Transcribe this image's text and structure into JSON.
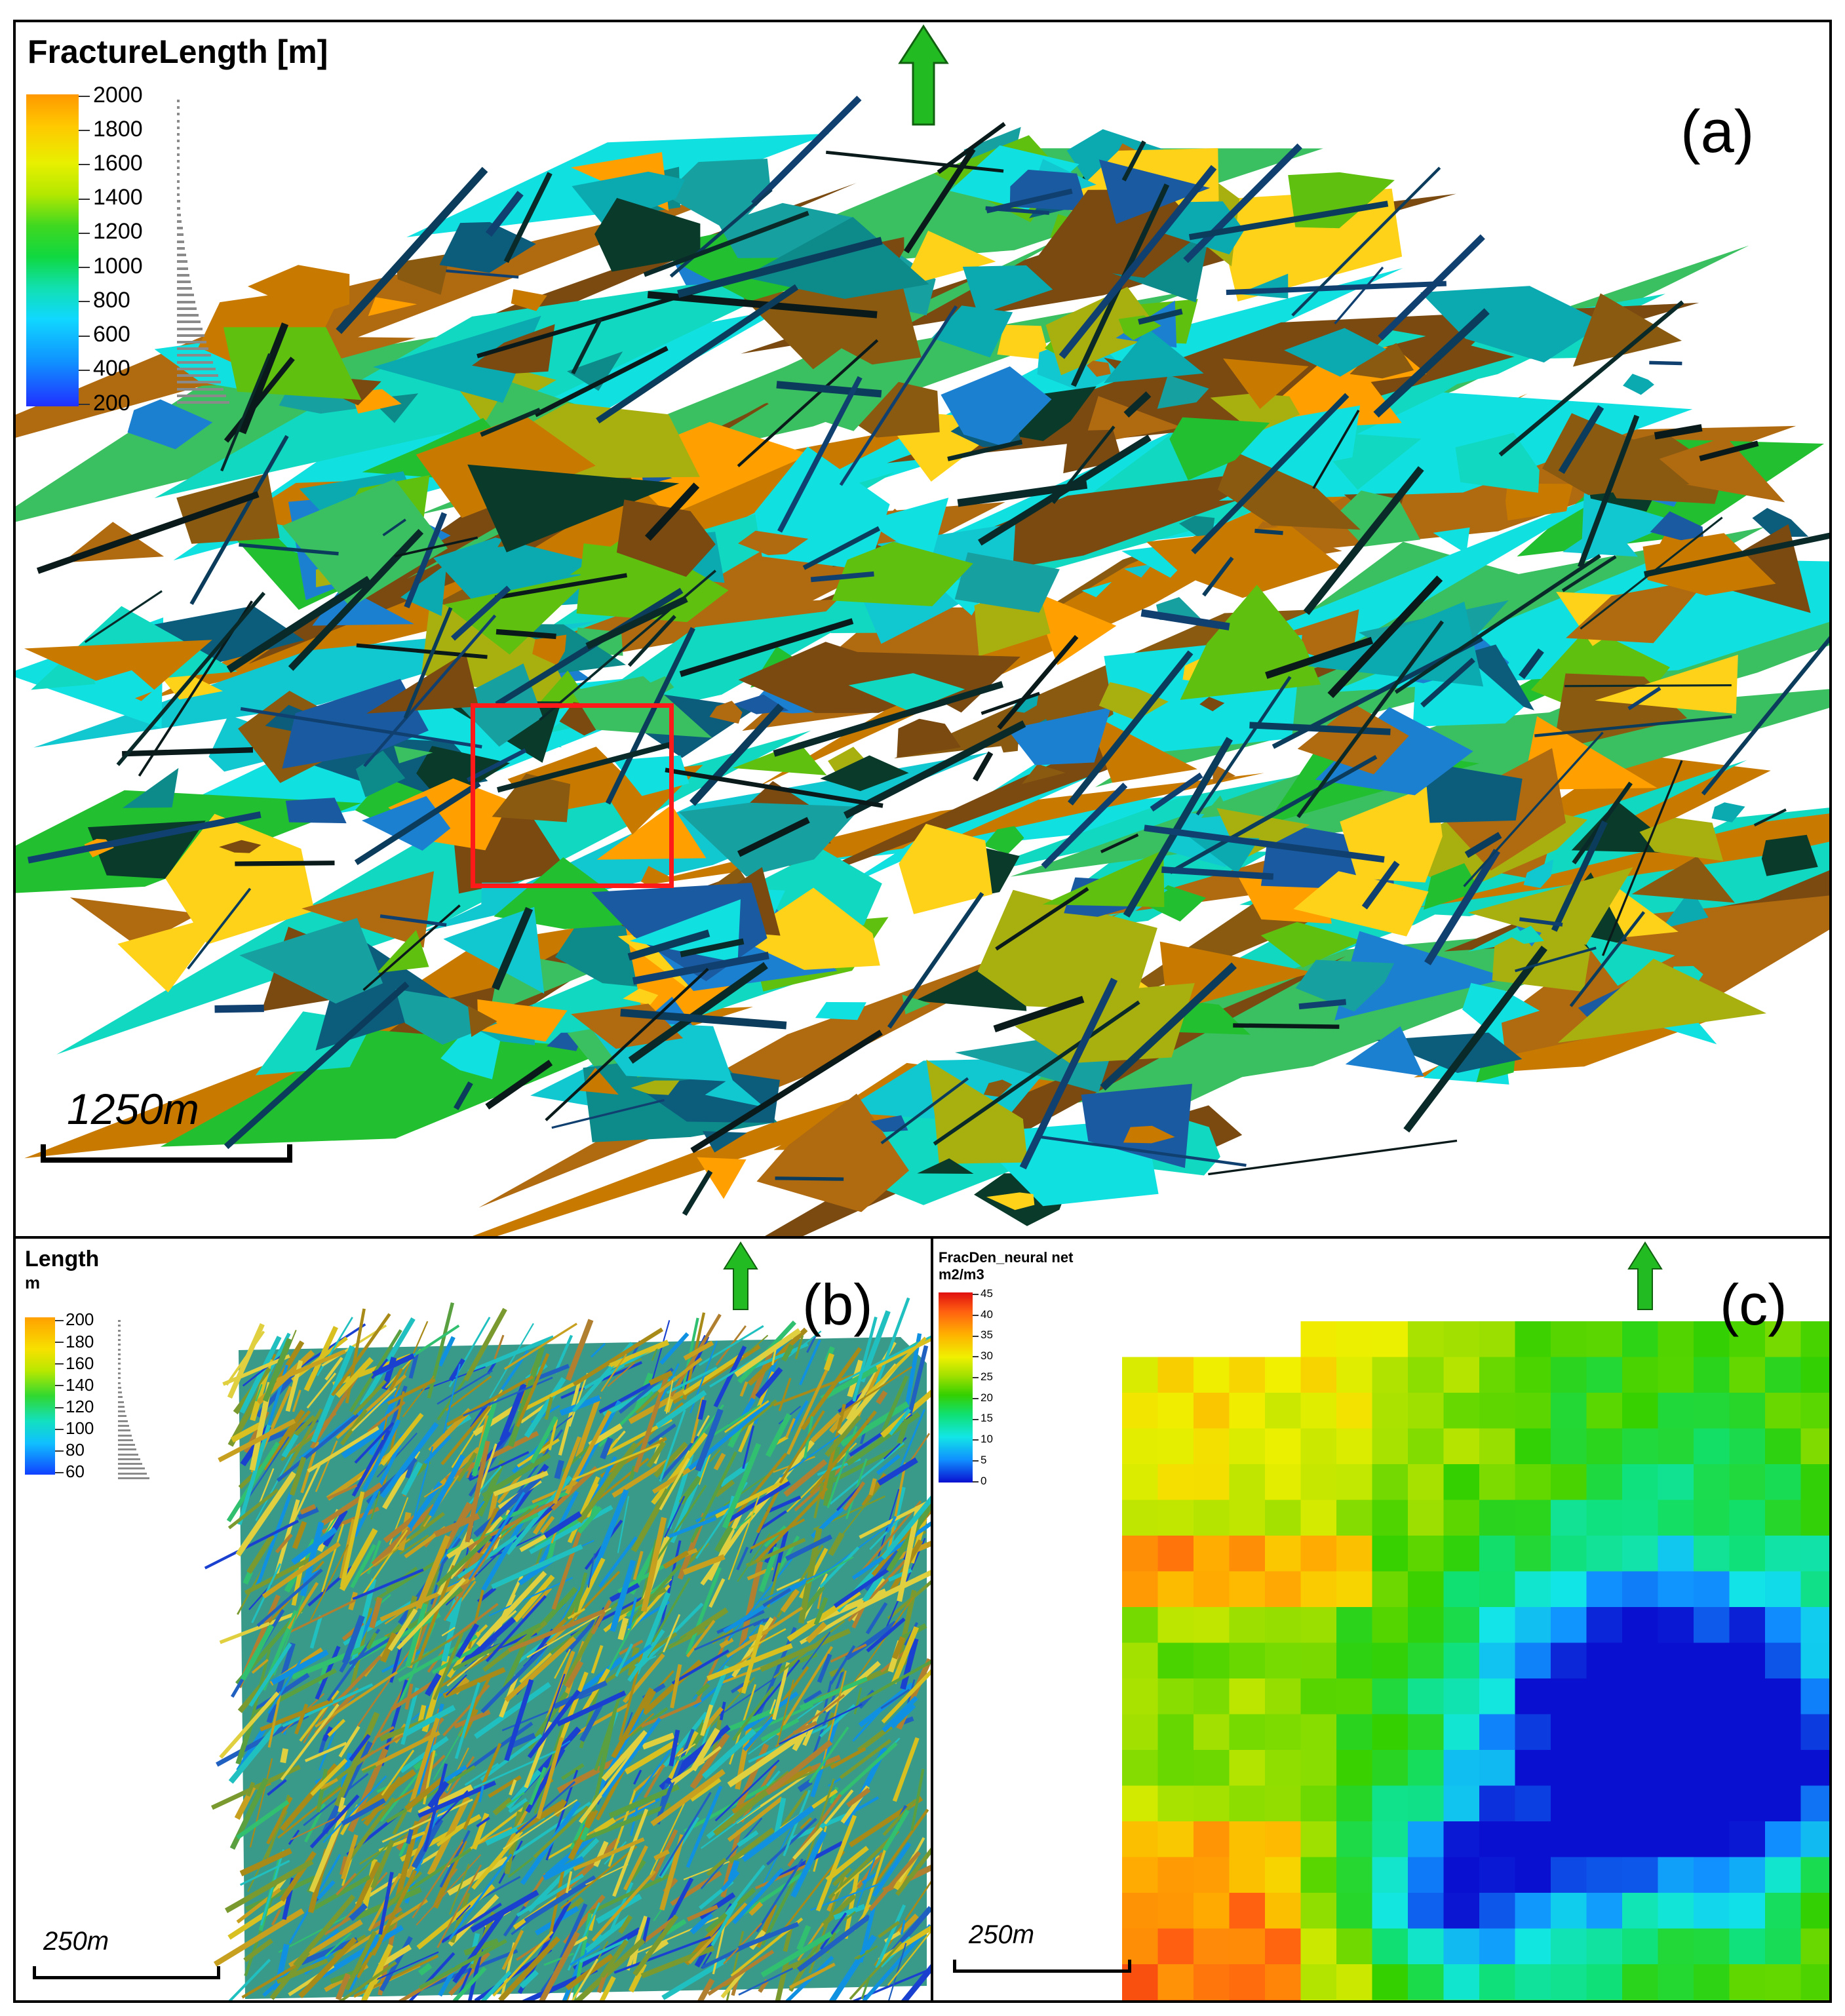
{
  "panel_a": {
    "legend_title": "FractureLength [m]",
    "ticks": [
      "2000",
      "1800",
      "1600",
      "1400",
      "1200",
      "1000",
      "800",
      "600",
      "400",
      "200"
    ],
    "scale_label": "1250m",
    "label": "(a)"
  },
  "panel_b": {
    "legend_title": "Length",
    "legend_unit": "m",
    "ticks": [
      "200",
      "180",
      "160",
      "140",
      "120",
      "100",
      "80",
      "60"
    ],
    "scale_label": "250m",
    "label": "(b)"
  },
  "panel_c": {
    "legend_title": "FracDen_neural net",
    "legend_unit": "m2/m3",
    "ticks": [
      "45",
      "40",
      "35",
      "30",
      "25",
      "20",
      "15",
      "10",
      "5",
      "0"
    ],
    "scale_label": "250m",
    "label": "(c)"
  },
  "colors": {
    "frame": "#000000",
    "highlight_box": "#ff1a1a",
    "north_arrow": "#22bb22",
    "colormap_a": [
      "#1f3fff",
      "#10c8ff",
      "#11e0b0",
      "#10d840",
      "#55e020",
      "#c8e000",
      "#ffd21a",
      "#ff9a00",
      "#b06a10",
      "#7a4a10"
    ],
    "colormap_c": [
      "#0a10d0",
      "#1090ff",
      "#12e6e6",
      "#10e070",
      "#34d000",
      "#a0e000",
      "#f0f000",
      "#ffb000",
      "#ff6010",
      "#e01010"
    ]
  },
  "icons": [
    "north-arrow-icon",
    "scale-bar-icon"
  ]
}
